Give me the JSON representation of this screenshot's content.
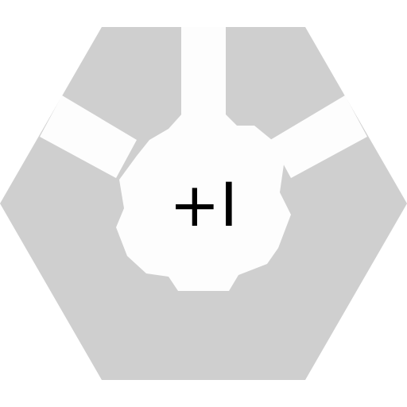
{
  "icon": {
    "name": "hexagon-badge-icon",
    "symbol": "+I",
    "colors": {
      "background": "#ffffff",
      "hexagon": "#cfcfcf",
      "center": "#fdfdfd",
      "symbol": "#000000"
    }
  }
}
